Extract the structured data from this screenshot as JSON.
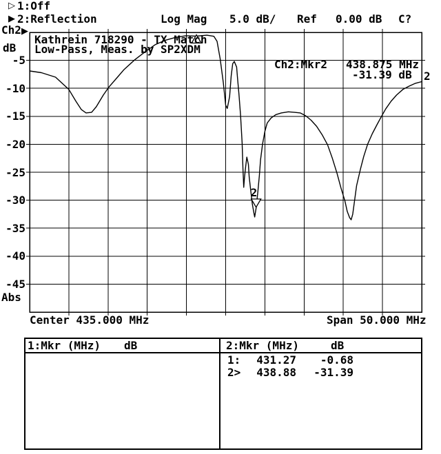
{
  "menu": {
    "trace1": {
      "indicator": "hollow-right-triangle",
      "label": "1:Off"
    },
    "trace2": {
      "indicator": "filled-right-triangle",
      "label": "2:Reflection"
    }
  },
  "header": {
    "format": "Log Mag",
    "scale_per_div": "5.0 dB/",
    "ref_label": "Ref",
    "ref_value": "0.00 dB",
    "cal_status": "C?"
  },
  "y_axis": {
    "channel": "Ch2",
    "unit": "dB",
    "scale_labels": [
      "-5",
      "-10",
      "-15",
      "-20",
      "-25",
      "-30",
      "-35",
      "-40",
      "-45"
    ],
    "bottom_label": "Abs"
  },
  "x_axis": {
    "center": "Center 435.000 MHz",
    "span": "Span 50.000 MHz"
  },
  "plot_title_line1": "Kathrein 718290 - TX Match",
  "plot_title_line2": "Low-Pass, Meas. by SP2XDM",
  "marker_readout": {
    "label": "Ch2:Mkr2",
    "frequency": "438.875 MHz",
    "level": "-31.39 dB"
  },
  "trace_number_right": "2",
  "marker_table": {
    "left": {
      "header": "1:Mkr (MHz)",
      "unit": "dB",
      "rows": []
    },
    "right": {
      "header": "2:Mkr (MHz)",
      "unit": "dB",
      "rows": [
        {
          "id": "1:",
          "freq": "431.27",
          "db": "-0.68"
        },
        {
          "id": "2>",
          "freq": "438.88",
          "db": "-31.39"
        }
      ]
    }
  },
  "colors": {
    "foreground": "#000000",
    "background": "#ffffff"
  },
  "chart_data": {
    "type": "line",
    "title": "Kathrein 718290 - TX Match, Low-Pass, Meas. by SP2XDM",
    "ylabel": "dB",
    "xlabel": "MHz",
    "x_range": [
      410,
      460
    ],
    "y_range": [
      0,
      -50
    ],
    "x_center_mhz": 435.0,
    "x_span_mhz": 50.0,
    "scale_db_per_div": 5.0,
    "ref_db": 0.0,
    "grid_divisions": [
      10,
      10
    ],
    "grid": "on",
    "markers": [
      {
        "n": "1",
        "freq_mhz": 431.27,
        "db": -0.68,
        "symbol": "triangle-up",
        "digit_shown": false
      },
      {
        "n": "2",
        "freq_mhz": 438.88,
        "db": -31.39,
        "symbol": "triangle-down",
        "digit_shown": true
      }
    ],
    "points": [
      [
        410.0,
        -6.9
      ],
      [
        411.5,
        -7.2
      ],
      [
        413.3,
        -8.0
      ],
      [
        415.0,
        -10.2
      ],
      [
        415.9,
        -12.3
      ],
      [
        416.6,
        -13.8
      ],
      [
        417.2,
        -14.4
      ],
      [
        417.9,
        -14.3
      ],
      [
        418.5,
        -13.3
      ],
      [
        419.4,
        -11.2
      ],
      [
        420.1,
        -9.8
      ],
      [
        421.2,
        -8.0
      ],
      [
        422.0,
        -6.7
      ],
      [
        423.4,
        -4.9
      ],
      [
        424.7,
        -3.5
      ],
      [
        426.0,
        -2.2
      ],
      [
        427.3,
        -1.4
      ],
      [
        428.6,
        -0.9
      ],
      [
        429.9,
        -0.6
      ],
      [
        431.27,
        -0.68
      ],
      [
        432.6,
        -0.5
      ],
      [
        433.5,
        -0.7
      ],
      [
        433.9,
        -1.6
      ],
      [
        434.3,
        -4.7
      ],
      [
        434.7,
        -9.0
      ],
      [
        435.0,
        -13.0
      ],
      [
        435.2,
        -13.6
      ],
      [
        435.5,
        -11.5
      ],
      [
        435.7,
        -7.8
      ],
      [
        435.9,
        -5.6
      ],
      [
        436.1,
        -5.2
      ],
      [
        436.4,
        -6.2
      ],
      [
        436.5,
        -8.0
      ],
      [
        436.7,
        -11.1
      ],
      [
        436.9,
        -14.8
      ],
      [
        437.1,
        -19.8
      ],
      [
        437.2,
        -24.1
      ],
      [
        437.3,
        -27.7
      ],
      [
        437.4,
        -26.0
      ],
      [
        437.55,
        -24.0
      ],
      [
        437.7,
        -22.3
      ],
      [
        437.9,
        -23.6
      ],
      [
        438.0,
        -25.8
      ],
      [
        438.2,
        -28.3
      ],
      [
        438.4,
        -30.7
      ],
      [
        438.6,
        -32.3
      ],
      [
        438.7,
        -33.0
      ],
      [
        438.88,
        -31.39
      ],
      [
        439.1,
        -28.5
      ],
      [
        439.3,
        -25.6
      ],
      [
        439.45,
        -22.8
      ],
      [
        439.7,
        -20.0
      ],
      [
        440.0,
        -17.7
      ],
      [
        440.3,
        -16.2
      ],
      [
        440.8,
        -15.3
      ],
      [
        441.4,
        -14.7
      ],
      [
        442.1,
        -14.4
      ],
      [
        443.0,
        -14.2
      ],
      [
        443.8,
        -14.3
      ],
      [
        444.5,
        -14.4
      ],
      [
        445.2,
        -14.9
      ],
      [
        445.9,
        -15.7
      ],
      [
        446.6,
        -16.8
      ],
      [
        447.3,
        -18.3
      ],
      [
        448.0,
        -20.1
      ],
      [
        448.6,
        -22.5
      ],
      [
        449.2,
        -25.2
      ],
      [
        449.7,
        -27.8
      ],
      [
        450.2,
        -30.1
      ],
      [
        450.5,
        -32.0
      ],
      [
        450.8,
        -33.1
      ],
      [
        451.0,
        -33.5
      ],
      [
        451.2,
        -32.5
      ],
      [
        451.4,
        -30.5
      ],
      [
        451.7,
        -27.4
      ],
      [
        452.2,
        -24.4
      ],
      [
        452.6,
        -22.2
      ],
      [
        453.1,
        -20.0
      ],
      [
        453.7,
        -18.1
      ],
      [
        454.3,
        -16.5
      ],
      [
        454.8,
        -15.2
      ],
      [
        455.4,
        -13.7
      ],
      [
        456.1,
        -12.3
      ],
      [
        456.8,
        -11.2
      ],
      [
        457.6,
        -10.2
      ],
      [
        458.4,
        -9.6
      ],
      [
        459.2,
        -9.1
      ],
      [
        460.0,
        -8.8
      ]
    ]
  }
}
